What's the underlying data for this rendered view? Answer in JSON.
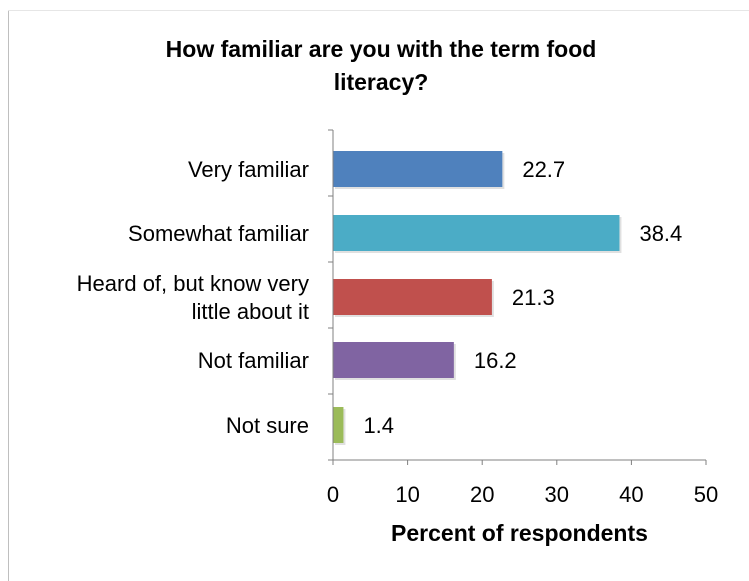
{
  "chart_data": {
    "type": "bar",
    "orientation": "horizontal",
    "title_lines": [
      "How familiar are you with the term food",
      "literacy?"
    ],
    "categories": [
      [
        "Very familiar"
      ],
      [
        "Somewhat familiar"
      ],
      [
        "Heard of, but know very",
        "little about it"
      ],
      [
        "Not familiar"
      ],
      [
        "Not sure"
      ]
    ],
    "values": [
      22.7,
      38.4,
      21.3,
      16.2,
      1.4
    ],
    "value_labels": [
      "22.7",
      "38.4",
      "21.3",
      "16.2",
      "1.4"
    ],
    "colors": [
      "#4f81bd",
      "#4bacc6",
      "#c0504d",
      "#8064a2",
      "#9bbb59"
    ],
    "xlabel": "Percent of respondents",
    "ylabel": "",
    "xlim": [
      0,
      50
    ],
    "xticks": [
      0,
      10,
      20,
      30,
      40,
      50
    ],
    "grid": false,
    "legend": "none"
  }
}
